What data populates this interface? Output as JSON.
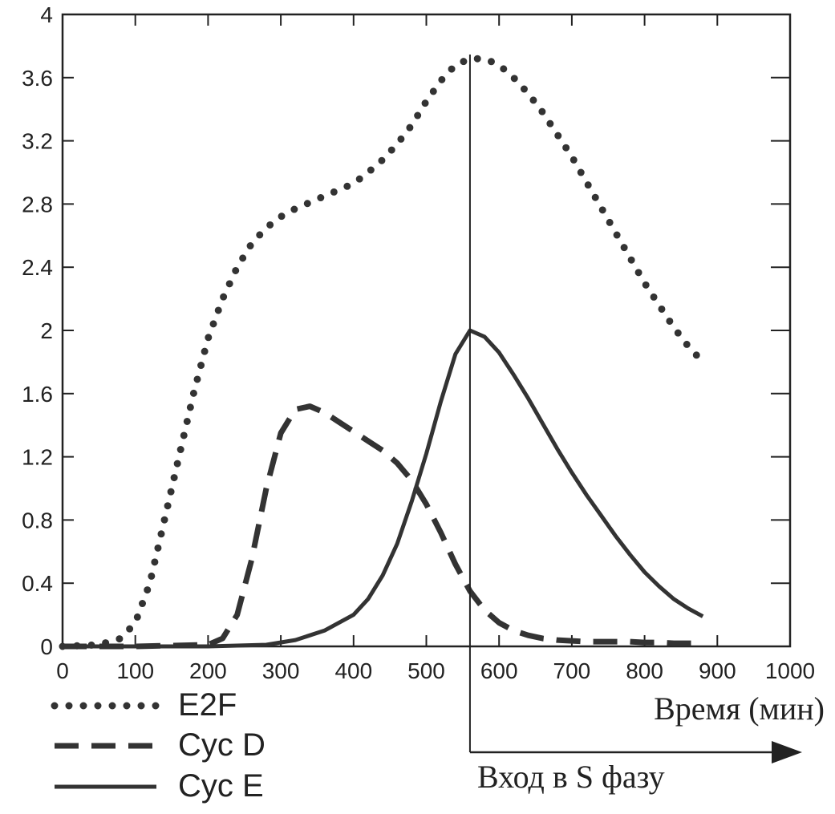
{
  "chart_data": {
    "type": "line",
    "xlabel": "Время (мин)",
    "ylabel": "",
    "xlim": [
      0,
      1000
    ],
    "ylim": [
      0,
      4
    ],
    "x_ticks": [
      "0",
      "100",
      "200",
      "300",
      "400",
      "500",
      "600",
      "700",
      "800",
      "900",
      "1000"
    ],
    "y_ticks": [
      "0",
      "0.4",
      "0.8",
      "1.2",
      "1.6",
      "2",
      "2.4",
      "2.8",
      "3.2",
      "3.6",
      "4"
    ],
    "grid": false,
    "legend_position": "bottom-left",
    "annotation": {
      "text": "Вход в S фазу",
      "x": 560
    },
    "series": [
      {
        "name": "E2F",
        "style": "dotted",
        "x": [
          0,
          50,
          80,
          100,
          120,
          140,
          160,
          180,
          200,
          220,
          240,
          260,
          280,
          300,
          320,
          340,
          360,
          380,
          400,
          420,
          440,
          460,
          480,
          500,
          520,
          540,
          560,
          580,
          600,
          620,
          640,
          660,
          680,
          700,
          720,
          740,
          760,
          780,
          800,
          820,
          840,
          860,
          880
        ],
        "y": [
          0,
          0.01,
          0.05,
          0.15,
          0.4,
          0.8,
          1.2,
          1.6,
          1.95,
          2.2,
          2.4,
          2.55,
          2.65,
          2.72,
          2.77,
          2.81,
          2.85,
          2.89,
          2.93,
          3.0,
          3.08,
          3.18,
          3.3,
          3.45,
          3.58,
          3.68,
          3.72,
          3.72,
          3.68,
          3.6,
          3.5,
          3.38,
          3.24,
          3.1,
          2.94,
          2.78,
          2.62,
          2.46,
          2.3,
          2.16,
          2.02,
          1.9,
          1.8
        ]
      },
      {
        "name": "Cyc D",
        "style": "dashed",
        "x": [
          0,
          100,
          200,
          220,
          240,
          260,
          280,
          300,
          320,
          340,
          360,
          380,
          400,
          420,
          440,
          460,
          480,
          500,
          520,
          540,
          560,
          580,
          600,
          620,
          640,
          660,
          680,
          700,
          720,
          740,
          760,
          780,
          800,
          820,
          840,
          860,
          880
        ],
        "y": [
          0,
          0,
          0.01,
          0.05,
          0.2,
          0.55,
          1.0,
          1.35,
          1.5,
          1.52,
          1.48,
          1.42,
          1.36,
          1.3,
          1.24,
          1.16,
          1.05,
          0.9,
          0.72,
          0.52,
          0.35,
          0.23,
          0.15,
          0.1,
          0.07,
          0.05,
          0.04,
          0.035,
          0.03,
          0.03,
          0.03,
          0.03,
          0.025,
          0.025,
          0.02,
          0.02,
          0.02
        ]
      },
      {
        "name": "Cyc E",
        "style": "solid",
        "x": [
          0,
          100,
          200,
          280,
          320,
          360,
          400,
          420,
          440,
          460,
          480,
          500,
          520,
          540,
          560,
          580,
          600,
          620,
          640,
          660,
          680,
          700,
          720,
          740,
          760,
          780,
          800,
          820,
          840,
          860,
          880
        ],
        "y": [
          0,
          0,
          0,
          0.01,
          0.04,
          0.1,
          0.2,
          0.3,
          0.45,
          0.65,
          0.92,
          1.22,
          1.55,
          1.85,
          2.0,
          1.96,
          1.86,
          1.72,
          1.57,
          1.41,
          1.25,
          1.1,
          0.96,
          0.83,
          0.7,
          0.58,
          0.47,
          0.38,
          0.3,
          0.24,
          0.19
        ]
      }
    ]
  }
}
